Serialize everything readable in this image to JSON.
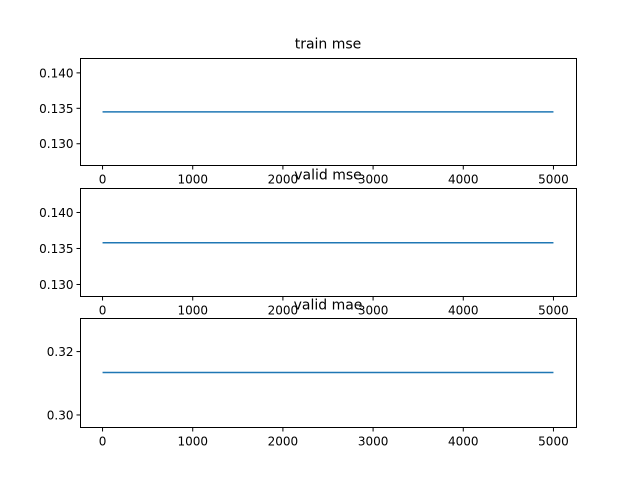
{
  "chart_data": [
    {
      "type": "line",
      "title": "train mse",
      "xlabel": "",
      "ylabel": "",
      "xlim": [
        -250,
        5250
      ],
      "ylim": [
        0.127,
        0.1421
      ],
      "xticks": [
        0,
        1000,
        2000,
        3000,
        4000,
        5000
      ],
      "xtick_labels": [
        "0",
        "1000",
        "2000",
        "3000",
        "4000",
        "5000"
      ],
      "yticks": [
        0.13,
        0.135,
        0.14
      ],
      "ytick_labels": [
        "0.130",
        "0.135",
        "0.140"
      ],
      "grid": false,
      "series": [
        {
          "x": [
            0,
            5000
          ],
          "y": [
            0.1345,
            0.1345
          ]
        }
      ]
    },
    {
      "type": "line",
      "title": "valid mse",
      "xlabel": "",
      "ylabel": "",
      "xlim": [
        -250,
        5250
      ],
      "ylim": [
        0.1284,
        0.1434
      ],
      "xticks": [
        0,
        1000,
        2000,
        3000,
        4000,
        5000
      ],
      "xtick_labels": [
        "0",
        "1000",
        "2000",
        "3000",
        "4000",
        "5000"
      ],
      "yticks": [
        0.13,
        0.135,
        0.14
      ],
      "ytick_labels": [
        "0.130",
        "0.135",
        "0.140"
      ],
      "grid": false,
      "series": [
        {
          "x": [
            0,
            5000
          ],
          "y": [
            0.1358,
            0.1358
          ]
        }
      ]
    },
    {
      "type": "line",
      "title": "valid mae",
      "xlabel": "",
      "ylabel": "",
      "xlim": [
        -250,
        5250
      ],
      "ylim": [
        0.2962,
        0.3306
      ],
      "xticks": [
        0,
        1000,
        2000,
        3000,
        4000,
        5000
      ],
      "xtick_labels": [
        "0",
        "1000",
        "2000",
        "3000",
        "4000",
        "5000"
      ],
      "yticks": [
        0.3,
        0.32
      ],
      "ytick_labels": [
        "0.30",
        "0.32"
      ],
      "grid": false,
      "series": [
        {
          "x": [
            0,
            5000
          ],
          "y": [
            0.3134,
            0.3134
          ]
        }
      ]
    }
  ],
  "colors": {
    "line": "#1f77b4",
    "axes": "#000000",
    "background": "#ffffff"
  }
}
